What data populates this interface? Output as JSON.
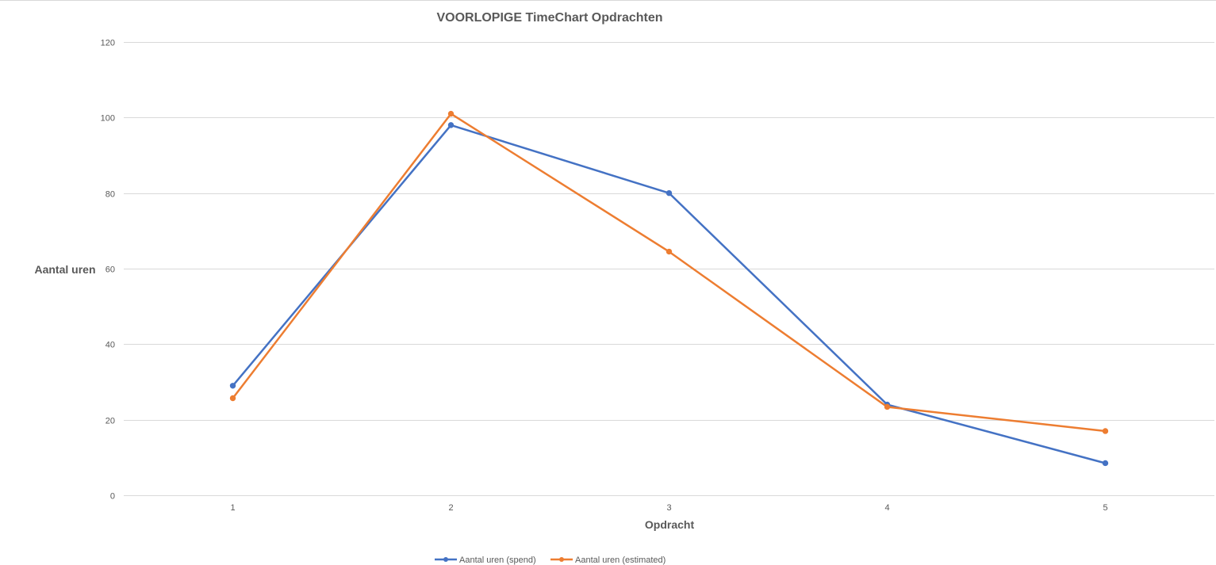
{
  "chart_data": {
    "type": "line",
    "title": "VOORLOPIGE TimeChart Opdrachten",
    "xlabel": "Opdracht",
    "ylabel": "Aantal uren",
    "categories": [
      "1",
      "2",
      "3",
      "4",
      "5"
    ],
    "ylim": [
      0,
      120
    ],
    "yticks": [
      0,
      20,
      40,
      60,
      80,
      100,
      120
    ],
    "grid": true,
    "legend_position": "bottom",
    "series": [
      {
        "name": "Aantal uren (spend)",
        "color": "#4472C4",
        "values": [
          29,
          98,
          80,
          24,
          8.5
        ]
      },
      {
        "name": "Aantal uren (estimated)",
        "color": "#ED7D31",
        "values": [
          25.7,
          101,
          64.5,
          23.4,
          17
        ]
      }
    ]
  }
}
